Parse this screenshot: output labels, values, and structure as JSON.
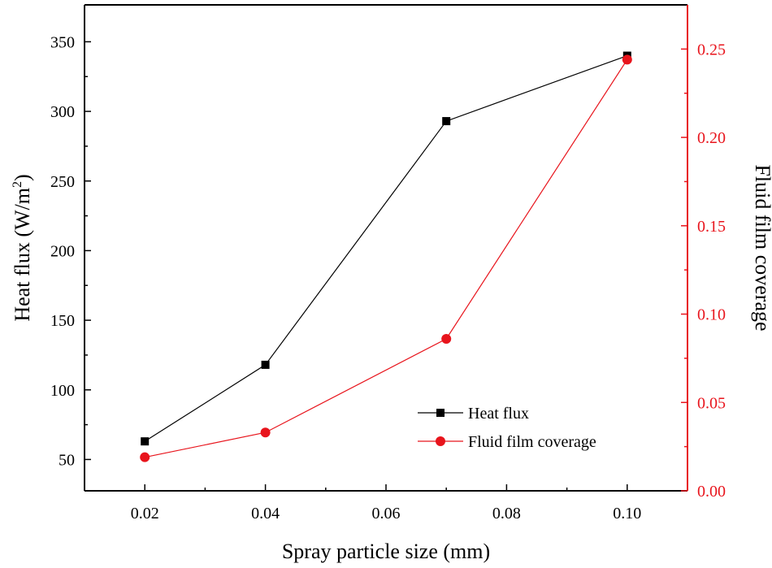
{
  "chart_data": {
    "type": "line",
    "title": "",
    "xlabel": "Spray particle size (mm)",
    "x": [
      0.02,
      0.04,
      0.07,
      0.1
    ],
    "xlim": [
      0.01,
      0.11
    ],
    "xticks": [
      0.02,
      0.04,
      0.06,
      0.08,
      0.1
    ],
    "xtick_labels": [
      "0.02",
      "0.04",
      "0.06",
      "0.08",
      "0.10"
    ],
    "y_left": {
      "label_main": "Heat flux (W/m",
      "label_sup": "2",
      "label_end": ")",
      "lim": [
        27.5,
        376.5
      ],
      "ticks": [
        50,
        100,
        150,
        200,
        250,
        300,
        350
      ],
      "tick_labels": [
        "50",
        "100",
        "150",
        "200",
        "250",
        "300",
        "350"
      ],
      "color": "#000000"
    },
    "y_right": {
      "label": "Fluid film coverage",
      "lim": [
        0.0,
        0.275
      ],
      "ticks": [
        0.0,
        0.05,
        0.1,
        0.15,
        0.2,
        0.25
      ],
      "tick_labels": [
        "0.00",
        "0.05",
        "0.10",
        "0.15",
        "0.20",
        "0.25"
      ],
      "color": "#e8141c"
    },
    "series": [
      {
        "name": "Heat flux",
        "axis": "left",
        "marker": "square",
        "color": "#000000",
        "values": [
          63,
          118,
          293,
          340
        ]
      },
      {
        "name": "Fluid film coverage",
        "axis": "right",
        "marker": "circle",
        "color": "#e8141c",
        "values": [
          0.019,
          0.033,
          0.086,
          0.244
        ]
      }
    ],
    "legend": {
      "position": "bottom-right",
      "entries": [
        "Heat flux",
        "Fluid film coverage"
      ]
    },
    "grid": false
  }
}
